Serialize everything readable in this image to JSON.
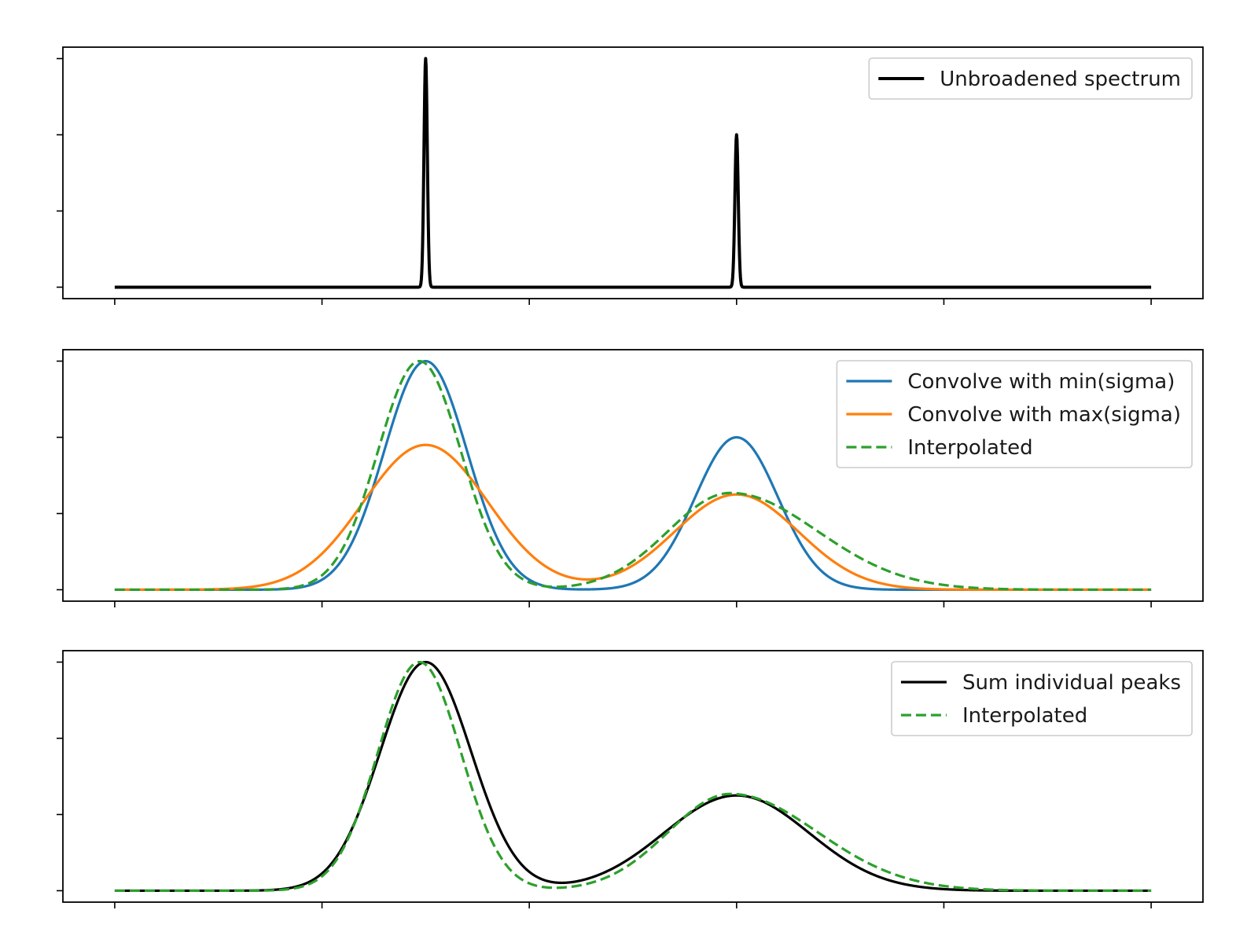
{
  "colors": {
    "black": "#000000",
    "blue": "#1f77b4",
    "orange": "#ff7f0e",
    "green": "#2ca02c",
    "legend_border": "#cccccc"
  },
  "chart_data": [
    {
      "type": "line",
      "title": "",
      "xlabel": "",
      "ylabel": "",
      "xlim": [
        -0.25,
        5.25
      ],
      "ylim": [
        -0.15,
        3.15
      ],
      "xticks": [
        0,
        1,
        2,
        3,
        4,
        5
      ],
      "yticks": [
        0,
        1,
        2,
        3
      ],
      "tick_labels_shown": false,
      "grid": false,
      "legend_position": "top-right",
      "peaks": [
        {
          "center": 1.5,
          "height": 3.0
        },
        {
          "center": 3.0,
          "height": 2.0
        }
      ],
      "series": [
        {
          "name": "Unbroadened spectrum",
          "color": "#000000",
          "style": "solid",
          "components": [
            {
              "center": 1.5,
              "amplitude": 3.0,
              "sigma": 0.008
            },
            {
              "center": 3.0,
              "amplitude": 2.0,
              "sigma": 0.008
            }
          ]
        }
      ]
    },
    {
      "type": "line",
      "title": "",
      "xlabel": "",
      "ylabel": "",
      "xlim": [
        -0.25,
        5.25
      ],
      "ylim": [
        -0.15,
        3.15
      ],
      "xticks": [
        0,
        1,
        2,
        3,
        4,
        5
      ],
      "yticks": [
        0,
        1,
        2,
        3
      ],
      "tick_labels_shown": false,
      "grid": false,
      "legend_position": "top-right",
      "series": [
        {
          "name": "Convolve with min(sigma)",
          "color": "#1f77b4",
          "style": "solid",
          "components": [
            {
              "center": 1.5,
              "amplitude": 3.0,
              "sigma": 0.2
            },
            {
              "center": 3.0,
              "amplitude": 2.0,
              "sigma": 0.2
            }
          ]
        },
        {
          "name": "Convolve with max(sigma)",
          "color": "#ff7f0e",
          "style": "solid",
          "components": [
            {
              "center": 1.5,
              "amplitude": 1.9,
              "sigma": 0.3
            },
            {
              "center": 3.0,
              "amplitude": 1.25,
              "sigma": 0.3
            }
          ]
        },
        {
          "name": "Interpolated",
          "color": "#2ca02c",
          "style": "dashed",
          "components": [
            {
              "center": 1.47,
              "amplitude": 3.0,
              "sigma": 0.2
            },
            {
              "center": 2.97,
              "amplitude": 1.27,
              "sigma": 0.3,
              "sigma_right": 0.42
            }
          ]
        }
      ]
    },
    {
      "type": "line",
      "title": "",
      "xlabel": "",
      "ylabel": "",
      "xlim": [
        -0.25,
        5.25
      ],
      "ylim": [
        -0.15,
        3.15
      ],
      "xticks": [
        0,
        1,
        2,
        3,
        4,
        5
      ],
      "yticks": [
        0,
        1,
        2,
        3
      ],
      "tick_labels_shown": false,
      "grid": false,
      "legend_position": "top-right",
      "series": [
        {
          "name": "Sum individual peaks",
          "color": "#000000",
          "style": "solid",
          "components": [
            {
              "center": 1.5,
              "amplitude": 3.0,
              "sigma": 0.22
            },
            {
              "center": 3.0,
              "amplitude": 1.25,
              "sigma": 0.35
            }
          ]
        },
        {
          "name": "Interpolated",
          "color": "#2ca02c",
          "style": "dashed",
          "components": [
            {
              "center": 1.47,
              "amplitude": 3.0,
              "sigma": 0.2
            },
            {
              "center": 2.97,
              "amplitude": 1.27,
              "sigma": 0.3,
              "sigma_right": 0.42
            }
          ]
        }
      ]
    }
  ]
}
